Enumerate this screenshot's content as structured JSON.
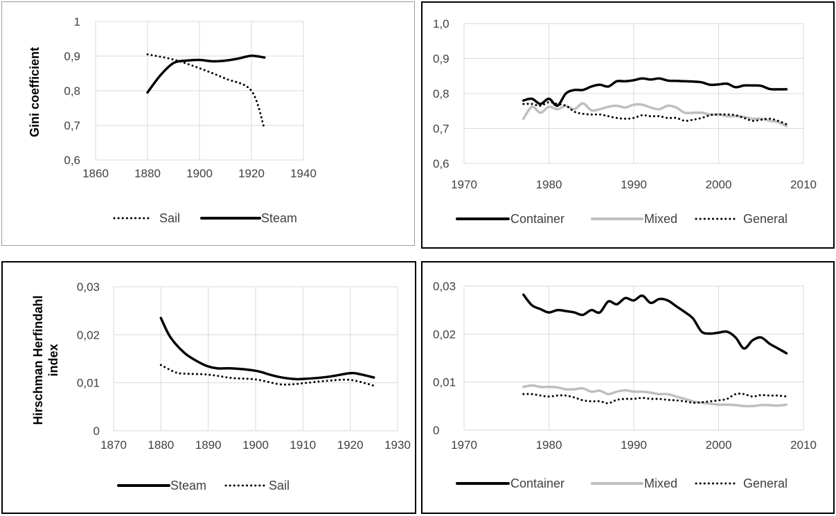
{
  "chart_data": [
    {
      "type": "line",
      "ylabel": "Gini coefficient",
      "xlabel": "",
      "xlim": [
        1860,
        1940
      ],
      "ylim": [
        0.6,
        1
      ],
      "xticks": [
        "1860",
        "1880",
        "1900",
        "1920",
        "1940"
      ],
      "yticks": [
        "0,6",
        "0,7",
        "0,8",
        "0,9",
        "1"
      ],
      "grid": true,
      "legend": "bottom",
      "series": [
        {
          "name": "Sail",
          "style": "dotted",
          "color": "#000000",
          "x": [
            1880,
            1890,
            1900,
            1910,
            1920,
            1925
          ],
          "y": [
            0.905,
            0.89,
            0.865,
            0.835,
            0.8,
            0.69
          ]
        },
        {
          "name": "Steam",
          "style": "solid",
          "color": "#000000",
          "x": [
            1880,
            1885,
            1890,
            1895,
            1900,
            1905,
            1910,
            1915,
            1920,
            1925
          ],
          "y": [
            0.795,
            0.845,
            0.88,
            0.887,
            0.889,
            0.885,
            0.887,
            0.893,
            0.901,
            0.896
          ]
        }
      ]
    },
    {
      "type": "line",
      "ylabel": "",
      "xlabel": "",
      "xlim": [
        1970,
        2010
      ],
      "ylim": [
        0.6,
        1.0
      ],
      "xticks": [
        "1970",
        "1980",
        "1990",
        "2000",
        "2010"
      ],
      "yticks": [
        "0,6",
        "0,7",
        "0,8",
        "0,9",
        "1,0"
      ],
      "grid": true,
      "legend": "bottom",
      "series": [
        {
          "name": "Container",
          "style": "solid",
          "color": "#000000",
          "x": [
            1977,
            1978,
            1979,
            1980,
            1981,
            1982,
            1983,
            1984,
            1985,
            1986,
            1987,
            1988,
            1989,
            1990,
            1991,
            1992,
            1993,
            1994,
            1995,
            1996,
            1997,
            1998,
            1999,
            2000,
            2001,
            2002,
            2003,
            2004,
            2005,
            2006,
            2007,
            2008
          ],
          "y": [
            0.78,
            0.785,
            0.77,
            0.785,
            0.765,
            0.8,
            0.81,
            0.81,
            0.82,
            0.825,
            0.82,
            0.835,
            0.835,
            0.838,
            0.843,
            0.84,
            0.843,
            0.837,
            0.836,
            0.835,
            0.834,
            0.832,
            0.825,
            0.826,
            0.828,
            0.818,
            0.823,
            0.823,
            0.822,
            0.813,
            0.812,
            0.812
          ]
        },
        {
          "name": "Mixed",
          "style": "solid",
          "color": "#bfbfbf",
          "x": [
            1977,
            1978,
            1979,
            1980,
            1981,
            1982,
            1983,
            1984,
            1985,
            1986,
            1987,
            1988,
            1989,
            1990,
            1991,
            1992,
            1993,
            1994,
            1995,
            1996,
            1997,
            1998,
            1999,
            2000,
            2001,
            2002,
            2003,
            2004,
            2005,
            2006,
            2007,
            2008
          ],
          "y": [
            0.728,
            0.762,
            0.745,
            0.762,
            0.755,
            0.765,
            0.755,
            0.772,
            0.752,
            0.755,
            0.762,
            0.765,
            0.76,
            0.768,
            0.768,
            0.76,
            0.755,
            0.765,
            0.76,
            0.745,
            0.745,
            0.745,
            0.74,
            0.74,
            0.735,
            0.735,
            0.733,
            0.728,
            0.728,
            0.722,
            0.718,
            0.707
          ]
        },
        {
          "name": "General",
          "style": "dotted",
          "color": "#000000",
          "x": [
            1977,
            1978,
            1979,
            1980,
            1981,
            1982,
            1983,
            1984,
            1985,
            1986,
            1987,
            1988,
            1989,
            1990,
            1991,
            1992,
            1993,
            1994,
            1995,
            1996,
            1997,
            1998,
            1999,
            2000,
            2001,
            2002,
            2003,
            2004,
            2005,
            2006,
            2007,
            2008
          ],
          "y": [
            0.77,
            0.77,
            0.765,
            0.775,
            0.77,
            0.765,
            0.748,
            0.742,
            0.74,
            0.74,
            0.735,
            0.73,
            0.728,
            0.73,
            0.738,
            0.735,
            0.735,
            0.73,
            0.73,
            0.722,
            0.725,
            0.73,
            0.738,
            0.74,
            0.74,
            0.738,
            0.73,
            0.722,
            0.725,
            0.728,
            0.722,
            0.712
          ]
        }
      ]
    },
    {
      "type": "line",
      "ylabel": "Hirschman Herfindahl index",
      "xlabel": "",
      "xlim": [
        1870,
        1930
      ],
      "ylim": [
        0,
        0.03
      ],
      "xticks": [
        "1870",
        "1880",
        "1890",
        "1900",
        "1910",
        "1920",
        "1930"
      ],
      "yticks": [
        "0",
        "0,01",
        "0,02",
        "0,03"
      ],
      "grid": true,
      "legend": "bottom",
      "series": [
        {
          "name": "Steam",
          "style": "solid",
          "color": "#000000",
          "x": [
            1880,
            1882,
            1885,
            1888,
            1890,
            1892,
            1895,
            1900,
            1903,
            1905,
            1908,
            1910,
            1915,
            1920,
            1922,
            1925
          ],
          "y": [
            0.0235,
            0.0195,
            0.0162,
            0.0143,
            0.0134,
            0.013,
            0.013,
            0.0125,
            0.0117,
            0.0112,
            0.0108,
            0.0108,
            0.0112,
            0.012,
            0.0118,
            0.0111
          ]
        },
        {
          "name": "Sail",
          "style": "dotted",
          "color": "#000000",
          "x": [
            1880,
            1883,
            1885,
            1890,
            1895,
            1900,
            1905,
            1908,
            1910,
            1915,
            1920,
            1925
          ],
          "y": [
            0.0137,
            0.0122,
            0.0119,
            0.0117,
            0.011,
            0.0107,
            0.0097,
            0.0097,
            0.0099,
            0.0104,
            0.0106,
            0.0094
          ]
        }
      ]
    },
    {
      "type": "line",
      "ylabel": "",
      "xlabel": "",
      "xlim": [
        1970,
        2010
      ],
      "ylim": [
        0,
        0.03
      ],
      "xticks": [
        "1970",
        "1980",
        "1990",
        "2000",
        "2010"
      ],
      "yticks": [
        "0",
        "0,01",
        "0,02",
        "0,03"
      ],
      "grid": true,
      "legend": "bottom",
      "series": [
        {
          "name": "Container",
          "style": "solid",
          "color": "#000000",
          "x": [
            1977,
            1978,
            1979,
            1980,
            1981,
            1982,
            1983,
            1984,
            1985,
            1986,
            1987,
            1988,
            1989,
            1990,
            1991,
            1992,
            1993,
            1994,
            1995,
            1996,
            1997,
            1998,
            1999,
            2000,
            2001,
            2002,
            2003,
            2004,
            2005,
            2006,
            2007,
            2008
          ],
          "y": [
            0.0282,
            0.026,
            0.0252,
            0.0245,
            0.025,
            0.0248,
            0.0245,
            0.024,
            0.025,
            0.0245,
            0.0268,
            0.0262,
            0.0275,
            0.027,
            0.028,
            0.0265,
            0.0273,
            0.027,
            0.0258,
            0.0246,
            0.0232,
            0.0205,
            0.0201,
            0.0203,
            0.0205,
            0.0193,
            0.017,
            0.0187,
            0.0193,
            0.018,
            0.017,
            0.016
          ]
        },
        {
          "name": "Mixed",
          "style": "solid",
          "color": "#bfbfbf",
          "x": [
            1977,
            1978,
            1979,
            1980,
            1981,
            1982,
            1983,
            1984,
            1985,
            1986,
            1987,
            1988,
            1989,
            1990,
            1991,
            1992,
            1993,
            1994,
            1995,
            1996,
            1997,
            1998,
            1999,
            2000,
            2001,
            2002,
            2003,
            2004,
            2005,
            2006,
            2007,
            2008
          ],
          "y": [
            0.009,
            0.0093,
            0.009,
            0.009,
            0.0089,
            0.0085,
            0.0085,
            0.0087,
            0.008,
            0.0082,
            0.0075,
            0.008,
            0.0083,
            0.008,
            0.008,
            0.0078,
            0.0075,
            0.0075,
            0.007,
            0.0065,
            0.006,
            0.0057,
            0.0055,
            0.0053,
            0.0053,
            0.0052,
            0.005,
            0.005,
            0.0052,
            0.0052,
            0.0051,
            0.0053
          ]
        },
        {
          "name": "General",
          "style": "dotted",
          "color": "#000000",
          "x": [
            1977,
            1978,
            1979,
            1980,
            1981,
            1982,
            1983,
            1984,
            1985,
            1986,
            1987,
            1988,
            1989,
            1990,
            1991,
            1992,
            1993,
            1994,
            1995,
            1996,
            1997,
            1998,
            1999,
            2000,
            2001,
            2002,
            2003,
            2004,
            2005,
            2006,
            2007,
            2008
          ],
          "y": [
            0.0075,
            0.0075,
            0.0072,
            0.007,
            0.0072,
            0.0072,
            0.0068,
            0.0062,
            0.006,
            0.006,
            0.0056,
            0.0063,
            0.0065,
            0.0065,
            0.0067,
            0.0065,
            0.0065,
            0.0063,
            0.0062,
            0.006,
            0.0057,
            0.0058,
            0.006,
            0.0062,
            0.0065,
            0.0075,
            0.0075,
            0.007,
            0.0073,
            0.0072,
            0.0072,
            0.007
          ]
        }
      ]
    }
  ]
}
